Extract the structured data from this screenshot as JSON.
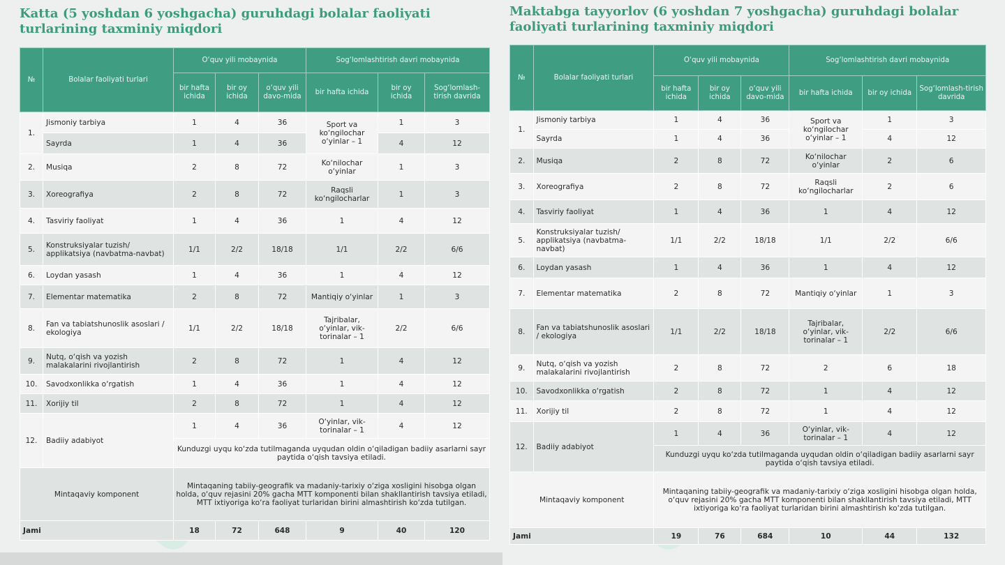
{
  "left": {
    "title": "Katta (5 yoshdan 6 yoshgacha) guruhdagi bolalar faoliyati turlarining taxminiy miqdori",
    "headers": {
      "no": "№",
      "activity": "Bolalar faoliyati turlari",
      "school_year": "O‘quv yili mobaynida",
      "health_period": "Sog‘lomlashtirish davri mobaynida",
      "week": "bir hafta ichida",
      "month": "bir oy ichida",
      "year": "o‘quv yili davo-mida",
      "week2": "bir hafta ichida",
      "month2": "bir oy ichida",
      "health": "Sog‘lomlash-tirish davrida"
    },
    "rows": [
      {
        "no": "1.",
        "name": "Jismoniy tarbiya",
        "w": "1",
        "m": "4",
        "y": "36",
        "h_act": "Sport va ko‘ngilochar o‘yinlar – 1",
        "h_m": "1",
        "h_p": "3"
      },
      {
        "name": "Sayrda",
        "w": "1",
        "m": "4",
        "y": "36",
        "h_m": "4",
        "h_p": "12"
      },
      {
        "no": "2.",
        "name": "Musiqa",
        "w": "2",
        "m": "8",
        "y": "72",
        "h_act": "Ko‘nilochar o‘yinlar",
        "h_m": "1",
        "h_p": "3"
      },
      {
        "no": "3.",
        "name": "Xoreografiya",
        "w": "2",
        "m": "8",
        "y": "72",
        "h_act": "Raqsli ko‘ngilocharlar",
        "h_m": "1",
        "h_p": "3"
      },
      {
        "no": "4.",
        "name": "Tasviriy faoliyat",
        "w": "1",
        "m": "4",
        "y": "36",
        "h_act": "1",
        "h_m": "4",
        "h_p": "12"
      },
      {
        "no": "5.",
        "name": "Konstruksiyalar tuzish/ applikatsiya (navbatma-navbat)",
        "w": "1/1",
        "m": "2/2",
        "y": "18/18",
        "h_act": "1/1",
        "h_m": "2/2",
        "h_p": "6/6"
      },
      {
        "no": "6.",
        "name": "Loydan yasash",
        "w": "1",
        "m": "4",
        "y": "36",
        "h_act": "1",
        "h_m": "4",
        "h_p": "12"
      },
      {
        "no": "7.",
        "name": "Elementar matematika",
        "w": "2",
        "m": "8",
        "y": "72",
        "h_act": "Mantiqiy o‘yinlar",
        "h_m": "1",
        "h_p": "3"
      },
      {
        "no": "8.",
        "name": "Fan va tabiatshunoslik asoslari / ekologiya",
        "w": "1/1",
        "m": "2/2",
        "y": "18/18",
        "h_act": "Tajribalar, o‘yinlar, vik-torinalar – 1",
        "h_m": "2/2",
        "h_p": "6/6"
      },
      {
        "no": "9.",
        "name": "Nutq, o‘qish va yozish malakalarini rivojlantirish",
        "w": "2",
        "m": "8",
        "y": "72",
        "h_act": "1",
        "h_m": "4",
        "h_p": "12"
      },
      {
        "no": "10.",
        "name": "Savodxonlikka o‘rgatish",
        "w": "1",
        "m": "4",
        "y": "36",
        "h_act": "1",
        "h_m": "4",
        "h_p": "12"
      },
      {
        "no": "11.",
        "name": "Xorijiy til",
        "w": "2",
        "m": "8",
        "y": "72",
        "h_act": "1",
        "h_m": "4",
        "h_p": "12"
      },
      {
        "no": "12.",
        "name": "Badiiy adabiyot",
        "w": "1",
        "m": "4",
        "y": "36",
        "h_act": "O‘yinlar, vik-torinalar – 1",
        "h_m": "4",
        "h_p": "12"
      }
    ],
    "row12_note": "Kunduzgi uyqu ko‘zda tutilmaganda uyqudan oldin o‘qiladigan badiiy asarlarni sayr paytida o‘qish tavsiya etiladi.",
    "regional_label": "Mintaqaviy komponent",
    "regional_text": "Mintaqaning tabiiy-geografik va madaniy-tarixiy o‘ziga xosligini hisobga olgan holda, o‘quv rejasini 20% gacha MTT komponenti bilan shakllantirish tavsiya etiladi, MTT ixtiyoriga ko‘ra faoliyat turlaridan birini almashtirish ko‘zda tutilgan.",
    "total": {
      "label": "Jami",
      "w": "18",
      "m": "72",
      "y": "648",
      "h_act": "9",
      "h_m": "40",
      "h_p": "120"
    }
  },
  "right": {
    "title": "Maktabga tayyorlov (6 yoshdan 7 yoshgacha) guruhdagi bolalar faoliyati turlarining taxminiy miqdori",
    "headers": {
      "no": "№",
      "activity": "Bolalar faoliyati turlari",
      "school_year": "O‘quv yili mobaynida",
      "health_period": "Sog‘lomlashtirish davri mobaynida",
      "week": "bir hafta ichida",
      "month": "bir oy ichida",
      "year": "o‘quv yili davo-mida",
      "week2": "bir hafta ichida",
      "month2": "bir oy ichida",
      "health": "Sog‘lomlash-tirish davrida"
    },
    "rows": [
      {
        "no": "1.",
        "name": "Jismoniy tarbiya",
        "w": "1",
        "m": "4",
        "y": "36",
        "h_act": "Sport va ko‘ngilochar o‘yinlar – 1",
        "h_m": "1",
        "h_p": "3"
      },
      {
        "name": "Sayrda",
        "w": "1",
        "m": "4",
        "y": "36",
        "h_m": "4",
        "h_p": "12"
      },
      {
        "no": "2.",
        "name": "Musiqa",
        "w": "2",
        "m": "8",
        "y": "72",
        "h_act": "Ko‘nilochar o‘yinlar",
        "h_m": "2",
        "h_p": "6"
      },
      {
        "no": "3.",
        "name": "Xoreografiya",
        "w": "2",
        "m": "8",
        "y": "72",
        "h_act": "Raqsli ko‘ngilocharlar",
        "h_m": "2",
        "h_p": "6"
      },
      {
        "no": "4.",
        "name": "Tasviriy faoliyat",
        "w": "1",
        "m": "4",
        "y": "36",
        "h_act": "1",
        "h_m": "4",
        "h_p": "12"
      },
      {
        "no": "5.",
        "name": "Konstruksiyalar tuzish/ applikatsiya (navbatma-navbat)",
        "w": "1/1",
        "m": "2/2",
        "y": "18/18",
        "h_act": "1/1",
        "h_m": "2/2",
        "h_p": "6/6"
      },
      {
        "no": "6.",
        "name": "Loydan yasash",
        "w": "1",
        "m": "4",
        "y": "36",
        "h_act": "1",
        "h_m": "4",
        "h_p": "12"
      },
      {
        "no": "7.",
        "name": "Elementar matematika",
        "w": "2",
        "m": "8",
        "y": "72",
        "h_act": "Mantiqiy o‘yinlar",
        "h_m": "1",
        "h_p": "3"
      },
      {
        "no": "8.",
        "name": "Fan va tabiatshunoslik asoslari / ekologiya",
        "w": "1/1",
        "m": "2/2",
        "y": "18/18",
        "h_act": "Tajribalar, o‘yinlar, vik-torinalar – 1",
        "h_m": "2/2",
        "h_p": "6/6"
      },
      {
        "no": "9.",
        "name": "Nutq, o‘qish va yozish malakalarini rivojlantirish",
        "w": "2",
        "m": "8",
        "y": "72",
        "h_act": "2",
        "h_m": "6",
        "h_p": "18"
      },
      {
        "no": "10.",
        "name": "Savodxonlikka o‘rgatish",
        "w": "2",
        "m": "8",
        "y": "72",
        "h_act": "1",
        "h_m": "4",
        "h_p": "12"
      },
      {
        "no": "11.",
        "name": "Xorijiy til",
        "w": "2",
        "m": "8",
        "y": "72",
        "h_act": "1",
        "h_m": "4",
        "h_p": "12"
      },
      {
        "no": "12.",
        "name": "Badiiy adabiyot",
        "w": "1",
        "m": "4",
        "y": "36",
        "h_act": "O‘yinlar, vik-torinalar – 1",
        "h_m": "4",
        "h_p": "12"
      }
    ],
    "row12_note": "Kunduzgi uyqu ko‘zda tutilmaganda uyqudan oldin o‘qiladigan badiiy asarlarni sayr paytida o‘qish tavsiya etiladi.",
    "regional_label": "Mintaqaviy komponent",
    "regional_text": "Mintaqaning tabiiy-geografik va madaniy-tarixiy o‘ziga xosligini hisobga olgan holda, o‘quv rejasini 20% gacha MTT komponenti bilan shakllantirish tavsiya etiladi, MTT ixtiyoriga ko‘ra faoliyat turlaridan birini almashtirish ko‘zda tutilgan.",
    "total": {
      "label": "Jami",
      "w": "19",
      "m": "76",
      "y": "684",
      "h_act": "10",
      "h_m": "44",
      "h_p": "132"
    }
  },
  "colors": {
    "header_green": "#3f9e82",
    "title_green": "#3d9a7b",
    "row_light": "#f3f4f3",
    "row_dark": "#dfe3e1"
  }
}
